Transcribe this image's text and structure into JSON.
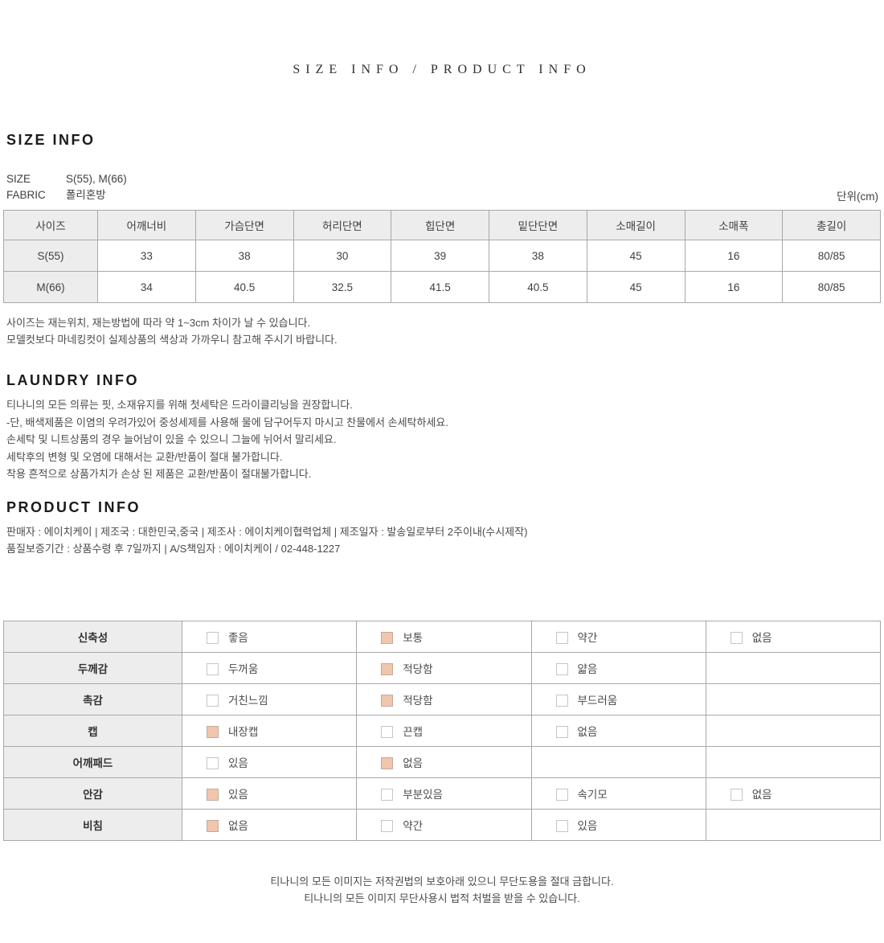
{
  "page_title": "SIZE INFO / PRODUCT INFO",
  "size_info": {
    "heading": "SIZE INFO",
    "meta": [
      {
        "label": "SIZE",
        "value": "S(55), M(66)"
      },
      {
        "label": "FABRIC",
        "value": "폴리혼방"
      }
    ],
    "unit_label": "단위(cm)",
    "table": {
      "headers": [
        "사이즈",
        "어깨너비",
        "가슴단면",
        "허리단면",
        "힙단면",
        "밑단단면",
        "소매길이",
        "소매폭",
        "총길이"
      ],
      "rows": [
        {
          "size": "S(55)",
          "values": [
            "33",
            "38",
            "30",
            "39",
            "38",
            "45",
            "16",
            "80/85"
          ]
        },
        {
          "size": "M(66)",
          "values": [
            "34",
            "40.5",
            "32.5",
            "41.5",
            "40.5",
            "45",
            "16",
            "80/85"
          ]
        }
      ]
    },
    "notes": [
      "사이즈는 재는위치, 재는방법에 따라 약 1~3cm 차이가 날 수 있습니다.",
      "모델컷보다 마네킹컷이 실제상품의 색상과 가까우니 참고해 주시기 바랍니다."
    ]
  },
  "laundry_info": {
    "heading": "LAUNDRY INFO",
    "lines": [
      "티나니의 모든 의류는 핏, 소재유지를 위해 첫세탁은 드라이클리닝을 권장합니다.",
      "-단, 배색제품은 이염의 우려가있어 중성세제를 사용해 물에 담구어두지 마시고 찬물에서 손세탁하세요.",
      "손세탁 및 니트상품의 경우 늘어남이 있을 수 있으니 그늘에 뉘어서 말리세요.",
      "세탁후의 변형 및 오염에 대해서는 교환/반품이 절대 불가합니다.",
      "착용 흔적으로 상품가치가 손상 된 제품은 교환/반품이 절대불가합니다."
    ]
  },
  "product_info": {
    "heading": "PRODUCT INFO",
    "lines": [
      "판매자 : 에이치케이 | 제조국 : 대한민국,중국 | 제조사 : 에이치케이협력업체 | 제조일자 : 발송일로부터 2주이내(수시제작)",
      "품질보증기간 : 상품수령 후 7일까지 | A/S책임자 : 에이치케이 / 02-448-1227"
    ]
  },
  "attributes_table": {
    "rows": [
      {
        "label": "신축성",
        "options": [
          {
            "text": "좋음",
            "checked": false
          },
          {
            "text": "보통",
            "checked": true
          },
          {
            "text": "약간",
            "checked": false
          },
          {
            "text": "없음",
            "checked": false
          }
        ]
      },
      {
        "label": "두께감",
        "options": [
          {
            "text": "두꺼움",
            "checked": false
          },
          {
            "text": "적당함",
            "checked": true
          },
          {
            "text": "얇음",
            "checked": false
          },
          null
        ]
      },
      {
        "label": "촉감",
        "options": [
          {
            "text": "거친느낌",
            "checked": false
          },
          {
            "text": "적당함",
            "checked": true
          },
          {
            "text": "부드러움",
            "checked": false
          },
          null
        ]
      },
      {
        "label": "캡",
        "options": [
          {
            "text": "내장캡",
            "checked": true
          },
          {
            "text": "끈캡",
            "checked": false
          },
          {
            "text": "없음",
            "checked": false
          },
          null
        ]
      },
      {
        "label": "어깨패드",
        "options": [
          {
            "text": "있음",
            "checked": false
          },
          {
            "text": "없음",
            "checked": true
          },
          null,
          null
        ]
      },
      {
        "label": "안감",
        "options": [
          {
            "text": "있음",
            "checked": true
          },
          {
            "text": "부분있음",
            "checked": false
          },
          {
            "text": "속기모",
            "checked": false
          },
          {
            "text": "없음",
            "checked": false
          }
        ]
      },
      {
        "label": "비침",
        "options": [
          {
            "text": "없음",
            "checked": true
          },
          {
            "text": "약간",
            "checked": false
          },
          {
            "text": "있음",
            "checked": false
          },
          null
        ]
      }
    ]
  },
  "footer": {
    "lines": [
      "티나니의 모든 이미지는 저작권법의 보호아래 있으니 무단도용을 절대 금합니다.",
      "티나니의 모든 이미지 무단사용시 법적 처벌을 받을 수 있습니다."
    ]
  },
  "colors": {
    "checked_box_fill": "#f2c5ad",
    "table_header_bg": "#ededed",
    "table_border": "#a8a8a8",
    "heading_text": "#1b1b1b"
  }
}
